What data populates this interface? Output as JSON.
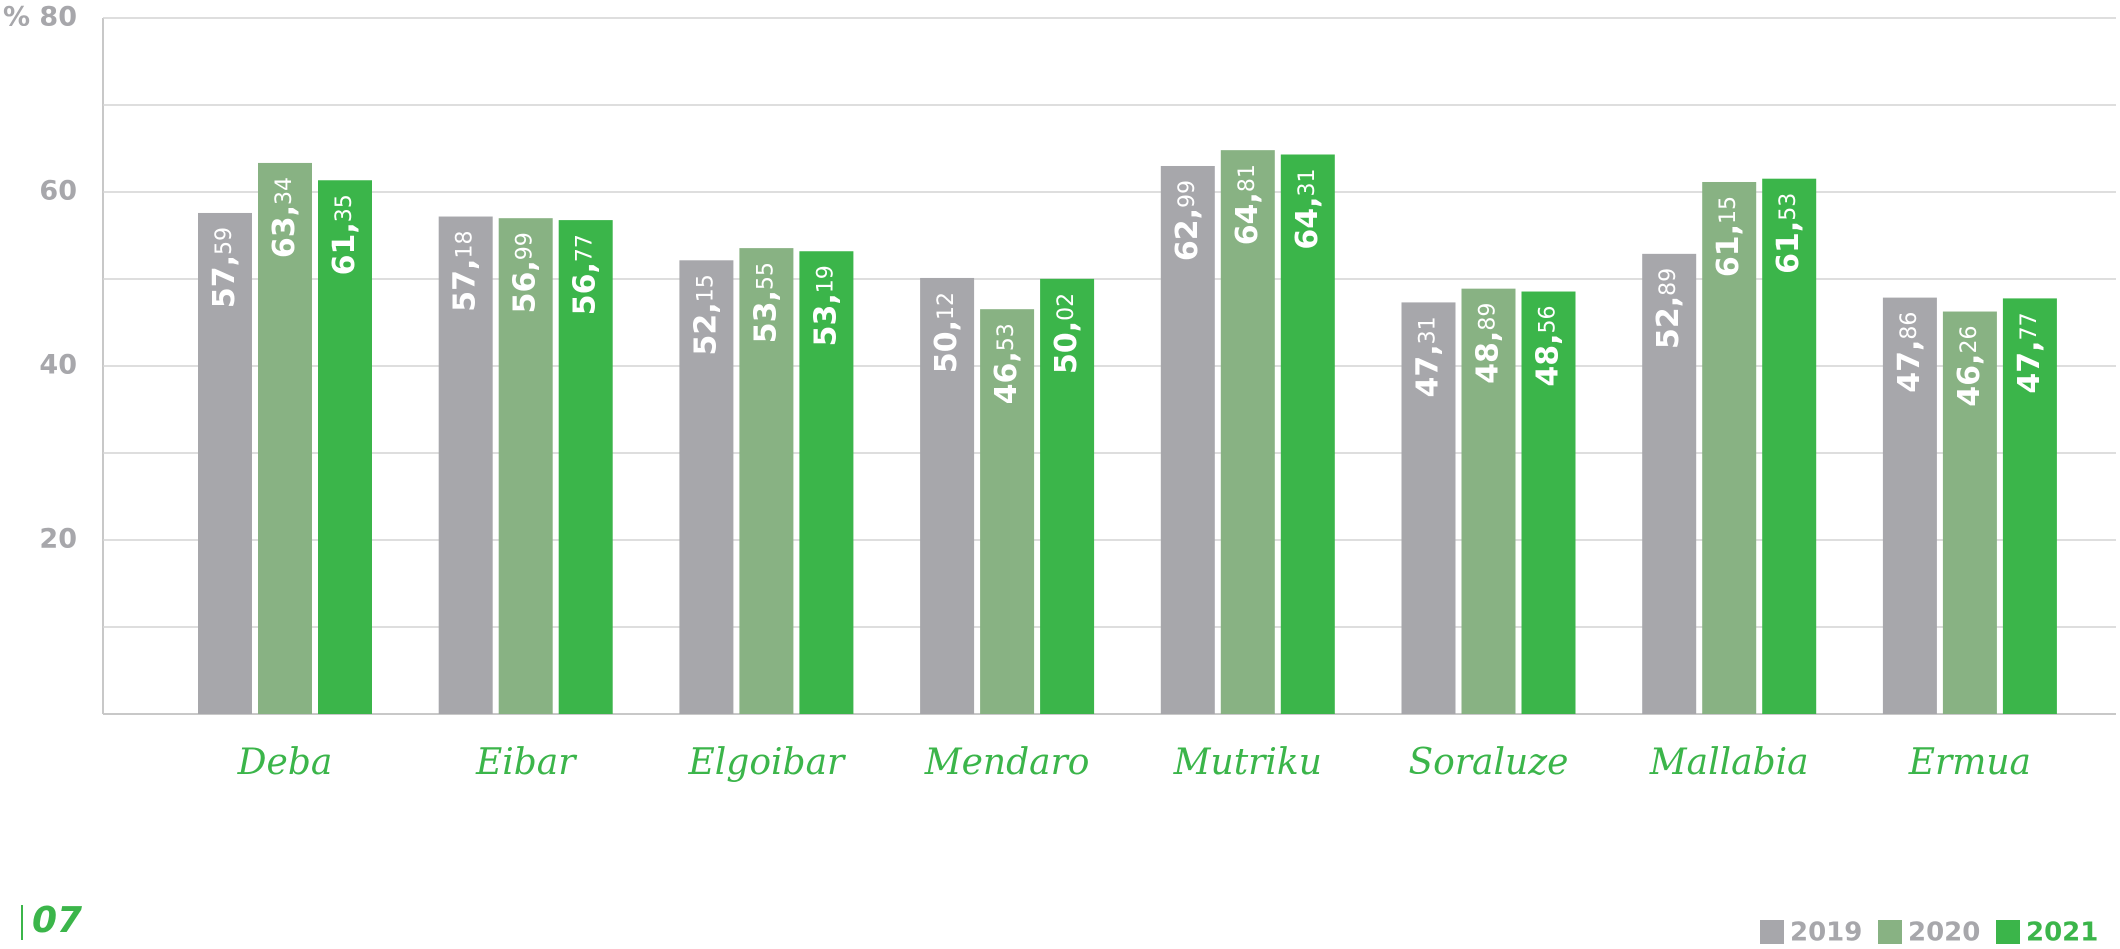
{
  "page_number": "07",
  "chart_data": {
    "type": "bar",
    "categories": [
      "Deba",
      "Eibar",
      "Elgoibar",
      "Mendaro",
      "Mutriku",
      "Soraluze",
      "Mallabia",
      "Ermua"
    ],
    "series": [
      {
        "name": "2019",
        "color": "#a7a7ab",
        "values": [
          57.59,
          57.18,
          52.15,
          50.12,
          62.99,
          47.31,
          52.89,
          47.86
        ],
        "value_labels": [
          "57,59",
          "57,18",
          "52,15",
          "50,12",
          "62,99",
          "47,31",
          "52,89",
          "47,86"
        ]
      },
      {
        "name": "2020",
        "color": "#88b283",
        "values": [
          63.34,
          56.99,
          53.55,
          46.53,
          64.81,
          48.89,
          61.15,
          46.26
        ],
        "value_labels": [
          "63,34",
          "56,99",
          "53,55",
          "46,53",
          "64,81",
          "48,89",
          "61,15",
          "46,26"
        ]
      },
      {
        "name": "2021",
        "color": "#3bb54a",
        "values": [
          61.35,
          56.77,
          53.19,
          50.02,
          64.31,
          48.56,
          61.53,
          47.77
        ],
        "value_labels": [
          "61,35",
          "56,77",
          "53,19",
          "50,02",
          "64,31",
          "48,56",
          "61,53",
          "47,77"
        ]
      }
    ],
    "ylim": [
      0,
      80
    ],
    "yticks": [
      20,
      40,
      60,
      {
        "value": 80,
        "label": "% 80"
      }
    ],
    "yminor": [
      10,
      30,
      50,
      70
    ],
    "grid": true,
    "legend": "bottom-right"
  }
}
